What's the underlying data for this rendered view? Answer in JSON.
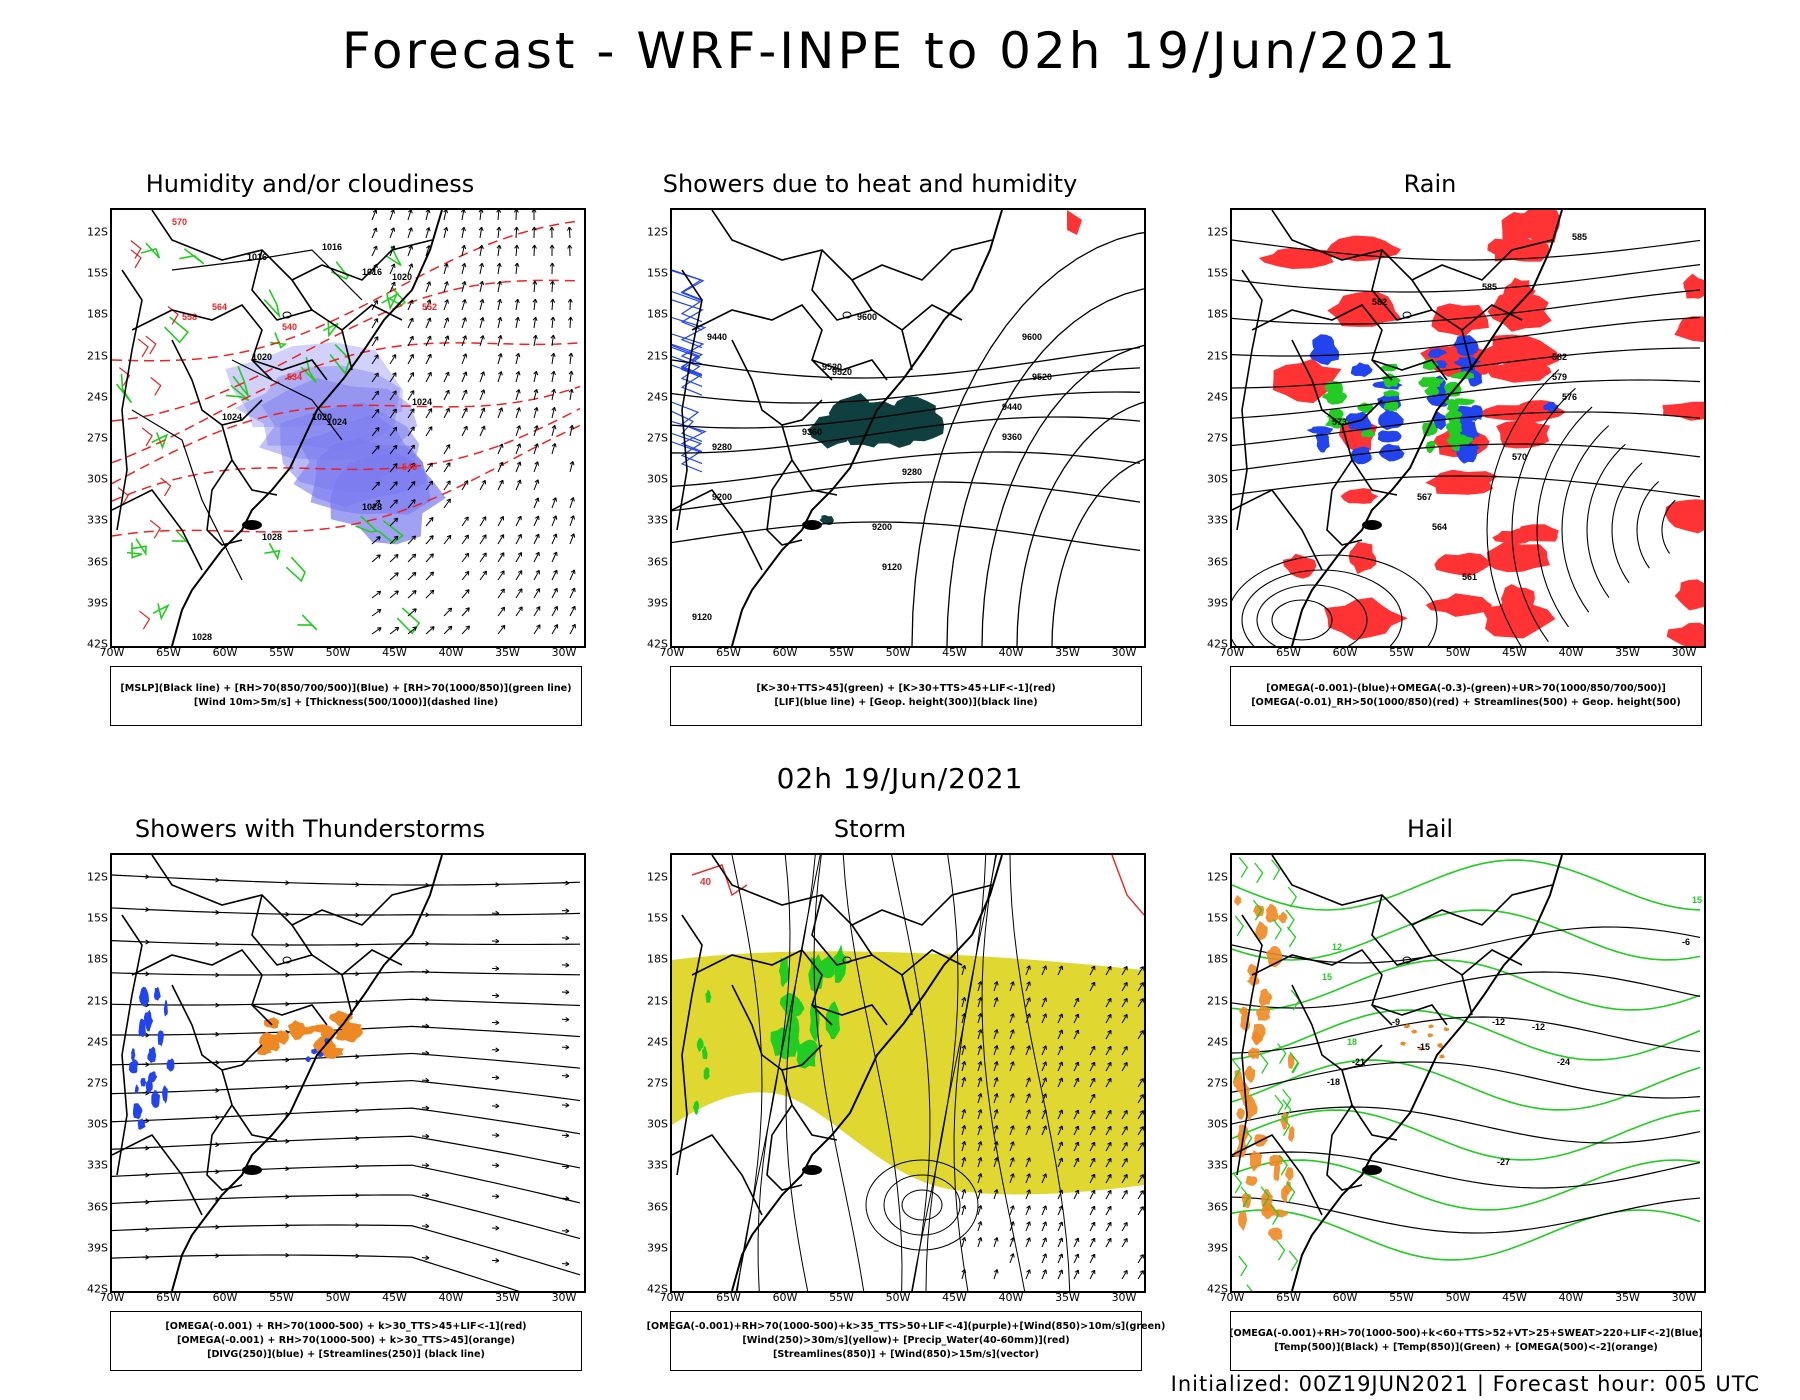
{
  "header": {
    "title": "Forecast - WRF-INPE to 02h 19/Jun/2021"
  },
  "subtitle": "02h 19/Jun/2021",
  "footer": "Initialized: 00Z19JUN2021 | Forecast hour: 005 UTC",
  "axes": {
    "lat_labels": [
      "12S",
      "15S",
      "18S",
      "21S",
      "24S",
      "27S",
      "30S",
      "33S",
      "36S",
      "39S",
      "42S"
    ],
    "lon_labels": [
      "70W",
      "65W",
      "60W",
      "55W",
      "50W",
      "45W",
      "40W",
      "35W",
      "30W"
    ]
  },
  "colors": {
    "rh_blue": "#7b7bef",
    "rh_green": "#22cc22",
    "thickness_red": "#ee2222",
    "dark_teal": "#0f3f3f",
    "lif_blue": "#2244ee",
    "storm_yellow": "#e0d830",
    "orange": "#ee8822"
  },
  "panels": [
    {
      "title": "Humidity and/or cloudiness",
      "legend": [
        "[MSLP](Black line) + [RH>70(850/700/500)](Blue) + [RH>70(1000/850)](green line)",
        "[Wind 10m>5m/s] + [Thickness(500/1000)](dashed line)"
      ],
      "contour_labels": [
        "1016",
        "1016",
        "1016",
        "1020",
        "1020",
        "1020",
        "1024",
        "1024",
        "1024",
        "1028",
        "1028",
        "1028",
        "570",
        "564",
        "558",
        "552",
        "546",
        "540",
        "534"
      ]
    },
    {
      "title": "Showers due to heat and humidity",
      "legend": [
        "[K>30+TTS>45](green) + [K>30+TTS>45+LIF<-1](red)",
        "[LIF](blue line) + [Geop. height(300)](black line)"
      ],
      "contour_labels": [
        "9600",
        "9600",
        "9520",
        "9520",
        "9520",
        "9440",
        "9440",
        "9360",
        "9360",
        "9280",
        "9280",
        "9200",
        "9200",
        "9120",
        "9120"
      ]
    },
    {
      "title": "Rain",
      "legend": [
        "[OMEGA(-0.001)-(blue)+OMEGA(-0.3)-(green)+UR>70(1000/850/700/500)]",
        "[OMEGA(-0.01)_RH>50(1000/850)(red) + Streamlines(500) + Geop. height(500)"
      ],
      "contour_labels": [
        "585",
        "585",
        "582",
        "582",
        "579",
        "576",
        "573",
        "570",
        "567",
        "564",
        "561"
      ]
    },
    {
      "title": "Showers with Thunderstorms",
      "legend": [
        "[OMEGA(-0.001) + RH>70(1000-500) + k>30_TTS>45+LIF<-1](red)",
        "[OMEGA(-0.001) + RH>70(1000-500) + k>30_TTS>45](orange)",
        "[DIVG(250)](blue) + [Streamlines(250)] (black line)"
      ],
      "contour_labels": []
    },
    {
      "title": "Storm",
      "legend": [
        "[OMEGA(-0.001)+RH>70(1000-500)+k>35_TTS>50+LIF<-4](purple)+[Wind(850)>10m/s](green)",
        "[Wind(250)>30m/s](yellow)+ [Precip_Water(40-60mm)](red)",
        "[Streamlines(850)] + [Wind(850)>15m/s](vector)"
      ],
      "contour_labels": [
        "40"
      ]
    },
    {
      "title": "Hail",
      "legend": [
        "[OMEGA(-0.001)+RH>70(1000-500)+k<60+TTS>52+VT>25+SWEAT>220+LIF<-2](Blue)",
        "[Temp(500)](Black) + [Temp(850)](Green) + [OMEGA(500)<-2](orange)"
      ],
      "contour_labels": [
        "-6",
        "-9",
        "-12",
        "-12",
        "-15",
        "-18",
        "-21",
        "-24",
        "-27",
        "12",
        "15",
        "15",
        "18"
      ]
    }
  ]
}
